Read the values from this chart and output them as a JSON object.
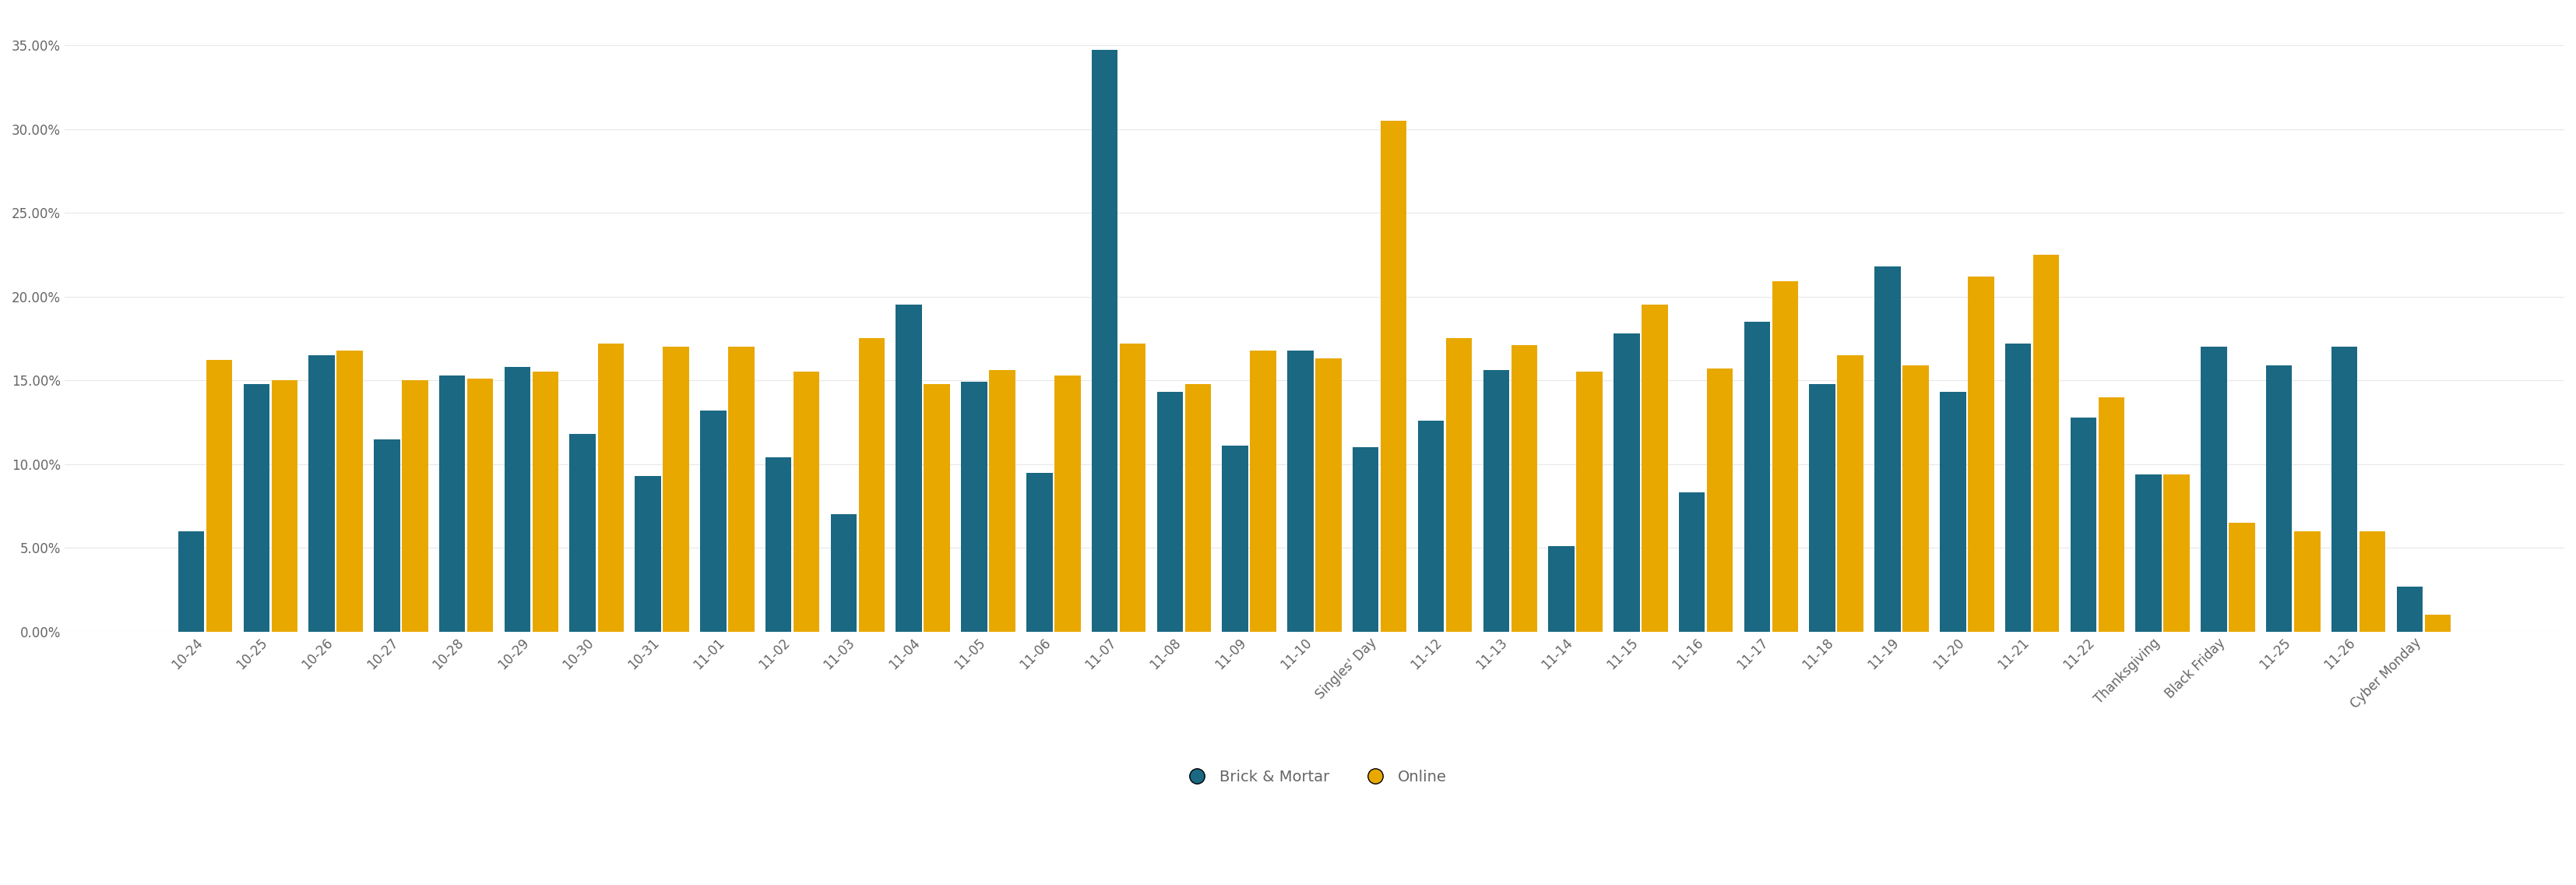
{
  "categories": [
    "10-24",
    "10-25",
    "10-26",
    "10-27",
    "10-28",
    "10-29",
    "10-30",
    "10-31",
    "11-01",
    "11-02",
    "11-03",
    "11-04",
    "11-05",
    "11-06",
    "11-07",
    "11-08",
    "11-09",
    "11-10",
    "Singles' Day",
    "11-12",
    "11-13",
    "11-14",
    "11-15",
    "11-16",
    "11-17",
    "11-18",
    "11-19",
    "11-20",
    "11-21",
    "11-22",
    "Thanksgiving",
    "Black Friday",
    "11-25",
    "11-26",
    "Cyber Monday"
  ],
  "brick_mortar": [
    0.06,
    0.148,
    0.165,
    0.115,
    0.153,
    0.158,
    0.118,
    0.093,
    0.132,
    0.104,
    0.07,
    0.195,
    0.149,
    0.095,
    0.347,
    0.143,
    0.111,
    0.168,
    0.11,
    0.126,
    0.156,
    0.051,
    0.178,
    0.083,
    0.185,
    0.148,
    0.218,
    0.143,
    0.172,
    0.128,
    0.094,
    0.17,
    0.159,
    0.17,
    0.027
  ],
  "online": [
    0.162,
    0.15,
    0.168,
    0.15,
    0.151,
    0.155,
    0.172,
    0.17,
    0.17,
    0.155,
    0.175,
    0.148,
    0.156,
    0.153,
    0.172,
    0.148,
    0.168,
    0.163,
    0.305,
    0.175,
    0.171,
    0.155,
    0.195,
    0.157,
    0.209,
    0.165,
    0.159,
    0.212,
    0.225,
    0.14,
    0.094,
    0.065,
    0.06,
    0.06,
    0.01
  ],
  "brick_color": "#1a6882",
  "online_color": "#e8a800",
  "tick_color": "#666666",
  "grid_color": "#e8e8e8",
  "ylim": [
    0,
    0.37
  ],
  "yticks": [
    0.0,
    0.05,
    0.1,
    0.15,
    0.2,
    0.25,
    0.3,
    0.35
  ],
  "tick_fontsize": 12,
  "legend_fontsize": 14,
  "background_color": "#ffffff",
  "bar_width": 0.4,
  "bar_gap": 0.03
}
